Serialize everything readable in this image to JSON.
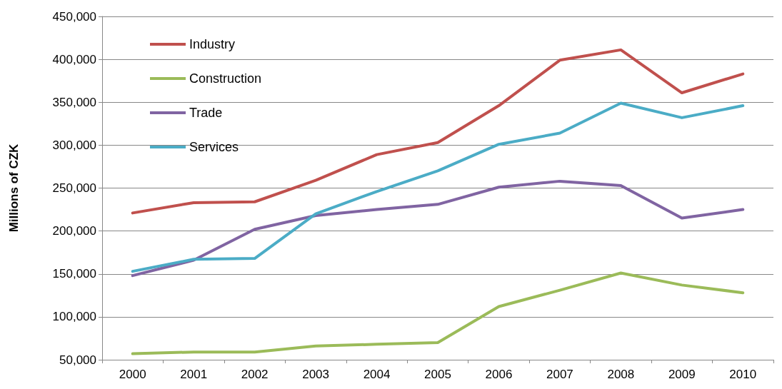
{
  "chart_data": {
    "type": "line",
    "ylabel": "Millions of CZK",
    "categories": [
      "2000",
      "2001",
      "2002",
      "2003",
      "2004",
      "2005",
      "2006",
      "2007",
      "2008",
      "2009",
      "2010"
    ],
    "series": [
      {
        "name": "Industry",
        "color": "#c0504d",
        "values": [
          221000,
          233000,
          234000,
          259000,
          289000,
          303000,
          346000,
          399000,
          411000,
          361000,
          383000
        ]
      },
      {
        "name": "Construction",
        "color": "#9bbb59",
        "values": [
          57000,
          59000,
          59000,
          66000,
          68000,
          70000,
          112000,
          131000,
          151000,
          137000,
          128000
        ]
      },
      {
        "name": "Trade",
        "color": "#8064a2",
        "values": [
          148000,
          166000,
          202000,
          218000,
          225000,
          231000,
          251000,
          258000,
          253000,
          215000,
          225000
        ]
      },
      {
        "name": "Services",
        "color": "#4bacc6",
        "values": [
          153000,
          167000,
          168000,
          220000,
          246000,
          270000,
          301000,
          314000,
          349000,
          332000,
          346000
        ]
      }
    ],
    "ylim": [
      50000,
      450000
    ],
    "yticks": [
      {
        "value": 50000,
        "label": "50,000"
      },
      {
        "value": 100000,
        "label": "100,000"
      },
      {
        "value": 150000,
        "label": "150,000"
      },
      {
        "value": 200000,
        "label": "200,000"
      },
      {
        "value": 250000,
        "label": "250,000"
      },
      {
        "value": 300000,
        "label": "300,000"
      },
      {
        "value": 350000,
        "label": "350,000"
      },
      {
        "value": 400000,
        "label": "400,000"
      },
      {
        "value": 450000,
        "label": "450,000"
      }
    ],
    "grid": "y",
    "legend": "top left",
    "marker": "none",
    "line_style": "solid"
  }
}
